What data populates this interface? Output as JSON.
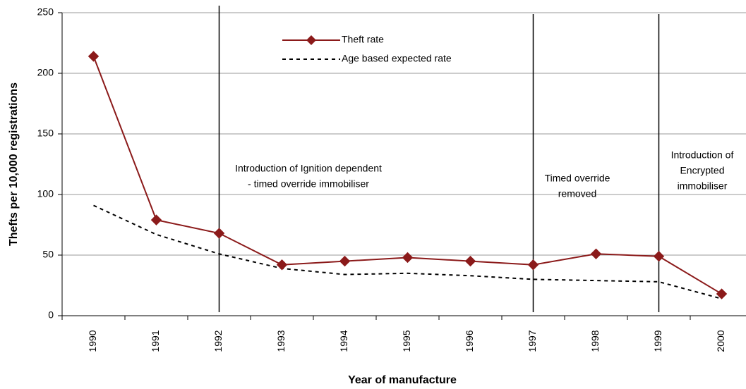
{
  "chart_data": {
    "type": "line",
    "xlabel": "Year of manufacture",
    "ylabel": "Thefts per 10,000 registrations",
    "categories": [
      "1990",
      "1991",
      "1992",
      "1993",
      "1994",
      "1995",
      "1996",
      "1997",
      "1998",
      "1999",
      "2000"
    ],
    "series": [
      {
        "name": "Theft rate",
        "color": "#8b1a1a",
        "style": "solid",
        "marker": "diamond",
        "values": [
          214,
          79,
          68,
          42,
          45,
          48,
          45,
          42,
          51,
          49,
          18
        ]
      },
      {
        "name": "Age based expected rate",
        "color": "#000000",
        "style": "dotted",
        "marker": "none",
        "values": [
          91,
          67,
          51,
          39,
          34,
          35,
          33,
          30,
          29,
          28,
          14
        ]
      }
    ],
    "ylim": [
      0,
      250
    ],
    "yticks": [
      0,
      50,
      100,
      150,
      200,
      250
    ],
    "grid": true,
    "legend": "top",
    "annotations": [
      {
        "category": "1992",
        "lines": [
          "Introduction of Ignition dependent",
          "- timed override immobiliser"
        ]
      },
      {
        "category": "1997",
        "lines": [
          "Timed override",
          "removed"
        ]
      },
      {
        "category": "1999",
        "lines": [
          "Introduction of",
          "Encrypted",
          "immobiliser"
        ]
      }
    ]
  }
}
